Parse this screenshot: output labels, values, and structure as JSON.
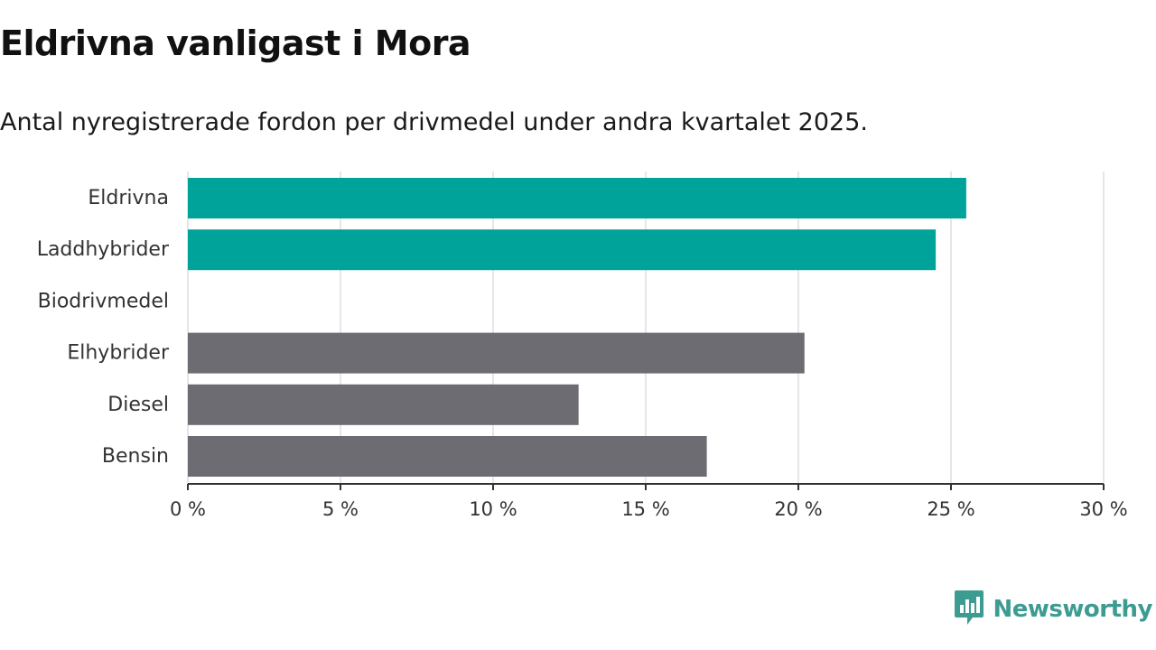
{
  "title": "Eldrivna vanligast i Mora",
  "subtitle": "Antal nyregistrerade fordon per drivmedel under andra kvartalet 2025.",
  "brand": {
    "name": "Newsworthy",
    "color": "#3d9c92",
    "icon": "newsworthy-logo-icon"
  },
  "colors": {
    "highlight": "#00a39a",
    "default": "#6d6c72",
    "grid": "#dddddd",
    "axis": "#333333"
  },
  "chart_data": {
    "type": "bar",
    "orientation": "horizontal",
    "categories": [
      "Eldrivna",
      "Laddhybrider",
      "Biodrivmedel",
      "Elhybrider",
      "Diesel",
      "Bensin"
    ],
    "values": [
      25.5,
      24.5,
      0,
      20.2,
      12.8,
      17.0
    ],
    "highlight": [
      true,
      true,
      false,
      false,
      false,
      false
    ],
    "unit": "%",
    "xlim": [
      0,
      30
    ],
    "ticks": [
      0,
      5,
      10,
      15,
      20,
      25,
      30
    ],
    "tick_labels": [
      "0 %",
      "5 %",
      "10 %",
      "15 %",
      "20 %",
      "25 %",
      "30 %"
    ],
    "grid": "vertical",
    "legend": "none"
  }
}
